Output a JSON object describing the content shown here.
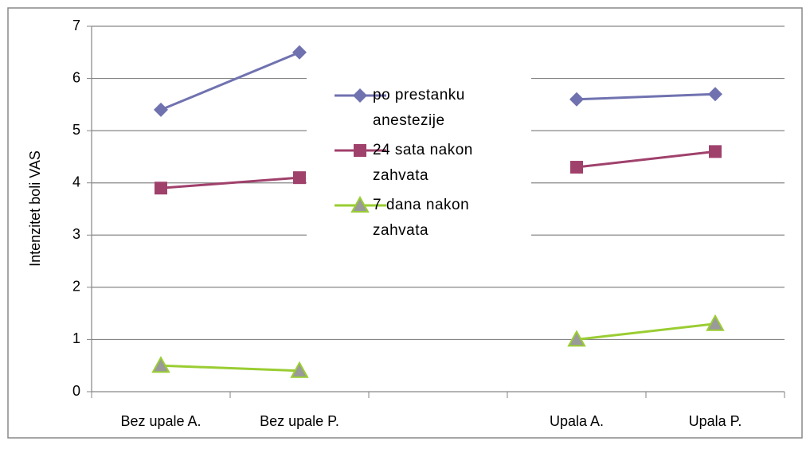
{
  "chart_data": {
    "type": "line",
    "ylabel": "Intenzitet boli VAS",
    "categories": [
      "Bez upale A.",
      "Bez upale P.",
      null,
      "Upala A.",
      "Upala P."
    ],
    "series": [
      {
        "name": "po prestanku anestezije",
        "color": "#7072b0",
        "marker": "diamond",
        "values": [
          5.4,
          6.5,
          null,
          5.6,
          5.7
        ]
      },
      {
        "name": "24 sata nakon zahvata",
        "color": "#a0416c",
        "marker": "square",
        "values": [
          3.9,
          4.1,
          null,
          4.3,
          4.6
        ]
      },
      {
        "name": "7 dana nakon zahvata",
        "color": "#9acd32",
        "marker": "triangle",
        "values": [
          0.5,
          0.4,
          null,
          1.0,
          1.3
        ]
      }
    ],
    "ylim": [
      0,
      7
    ],
    "yticks": [
      0,
      1,
      2,
      3,
      4,
      5,
      6,
      7
    ],
    "grid": true,
    "legend": "center"
  }
}
